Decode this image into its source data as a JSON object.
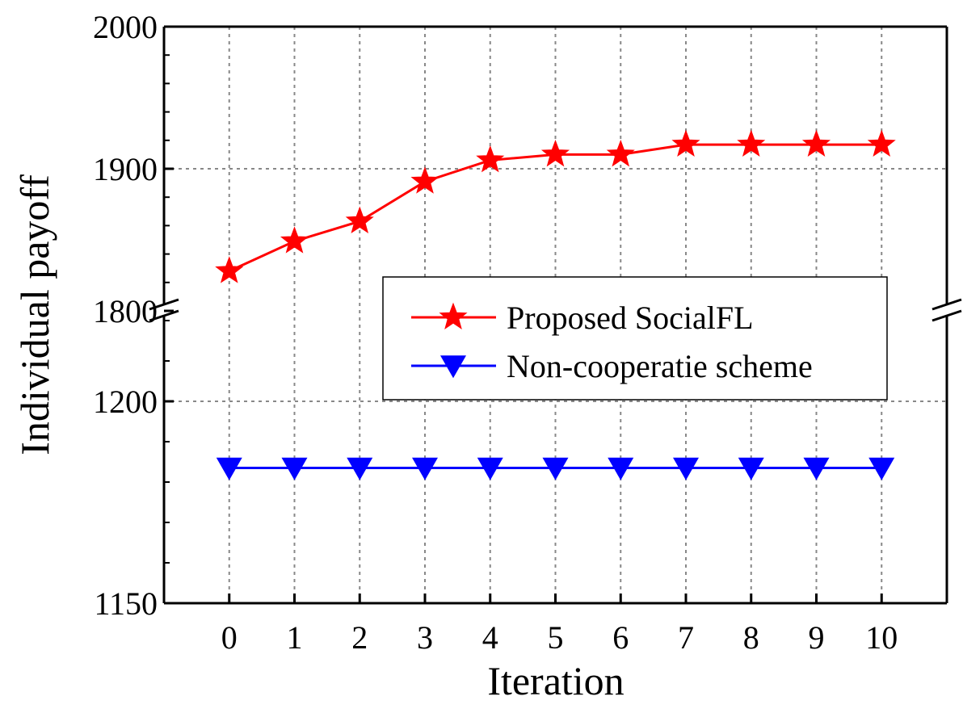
{
  "chart_data": {
    "type": "line",
    "xlabel": "Iteration",
    "ylabel": "Individual payoff",
    "x": [
      0,
      1,
      2,
      3,
      4,
      5,
      6,
      7,
      8,
      9,
      10
    ],
    "xlim": [
      -1,
      11
    ],
    "y_axis": {
      "broken": true,
      "lower_segment": {
        "range": [
          1150,
          1220
        ],
        "ticks": [
          1150,
          1200
        ]
      },
      "upper_segment": {
        "range": [
          1800,
          2000
        ],
        "ticks": [
          1800,
          1900,
          2000
        ]
      }
    },
    "grid": true,
    "legend_position": "center-right",
    "series": [
      {
        "name": "Proposed SocialFL",
        "color": "#ff0000",
        "marker": "star",
        "values": [
          1828,
          1849,
          1863,
          1891,
          1906,
          1910,
          1910,
          1917,
          1917,
          1917,
          1917
        ]
      },
      {
        "name": "Non-cooperatie scheme",
        "color": "#0000ff",
        "marker": "triangle-down",
        "values": [
          1183.5,
          1183.5,
          1183.5,
          1183.5,
          1183.5,
          1183.5,
          1183.5,
          1183.5,
          1183.5,
          1183.5,
          1183.5
        ]
      }
    ]
  }
}
